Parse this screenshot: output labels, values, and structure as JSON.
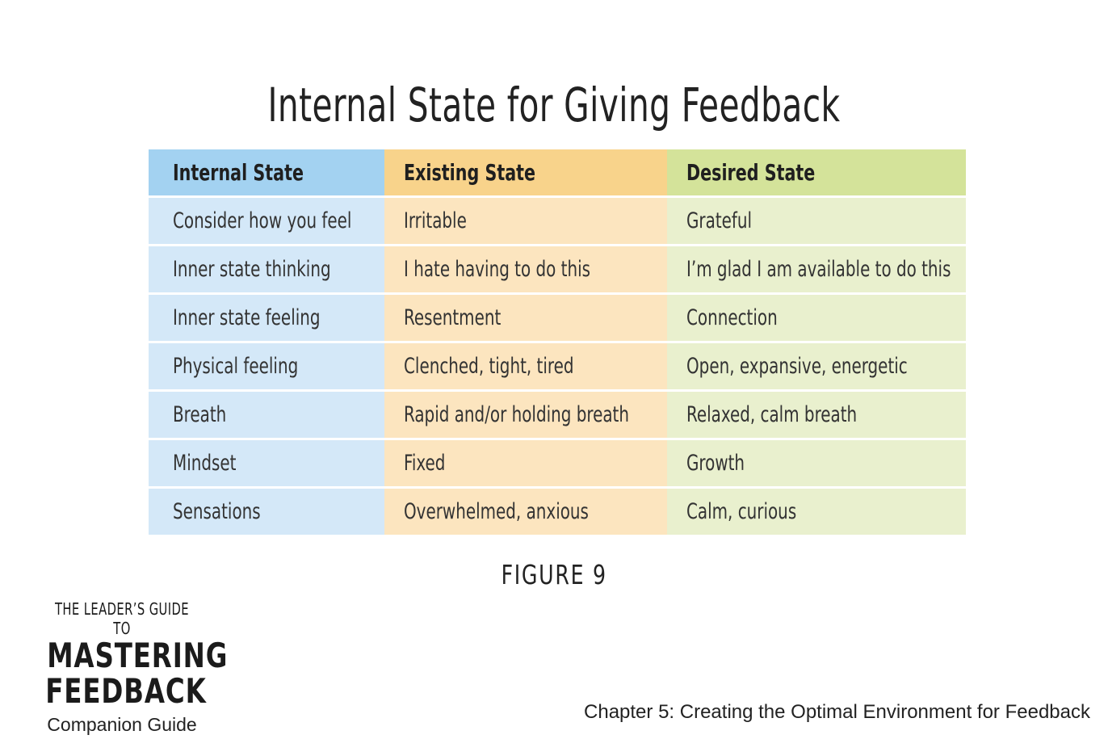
{
  "title": "Internal State for Giving Feedback",
  "table": {
    "headers": [
      "Internal State",
      "Existing State",
      "Desired State"
    ],
    "rows": [
      [
        "Consider how you feel",
        "Irritable",
        "Grateful"
      ],
      [
        "Inner state thinking",
        "I hate having to do this",
        "I’m glad I am available to do this"
      ],
      [
        "Inner state feeling",
        "Resentment",
        "Connection"
      ],
      [
        "Physical feeling",
        "Clenched, tight, tired",
        "Open, expansive, energetic"
      ],
      [
        "Breath",
        "Rapid and/or holding breath",
        "Relaxed, calm breath"
      ],
      [
        "Mindset",
        "Fixed",
        "Growth"
      ],
      [
        "Sensations",
        "Overwhelmed, anxious",
        "Calm, curious"
      ]
    ]
  },
  "figure_label": "FIGURE 9",
  "logo": {
    "kicker": "THE LEADER’S GUIDE TO",
    "line1": "MASTERING",
    "line2": "FEEDBACK",
    "subtitle": "Companion Guide"
  },
  "footer": "Chapter 5: Creating the Optimal Environment for Feedback",
  "colors": {
    "internal_header": "#a3d2f1",
    "existing_header": "#f8d38b",
    "desired_header": "#d4e39a",
    "internal_cell": "#d4e8f8",
    "existing_cell": "#fce5bf",
    "desired_cell": "#e9f0ce"
  }
}
